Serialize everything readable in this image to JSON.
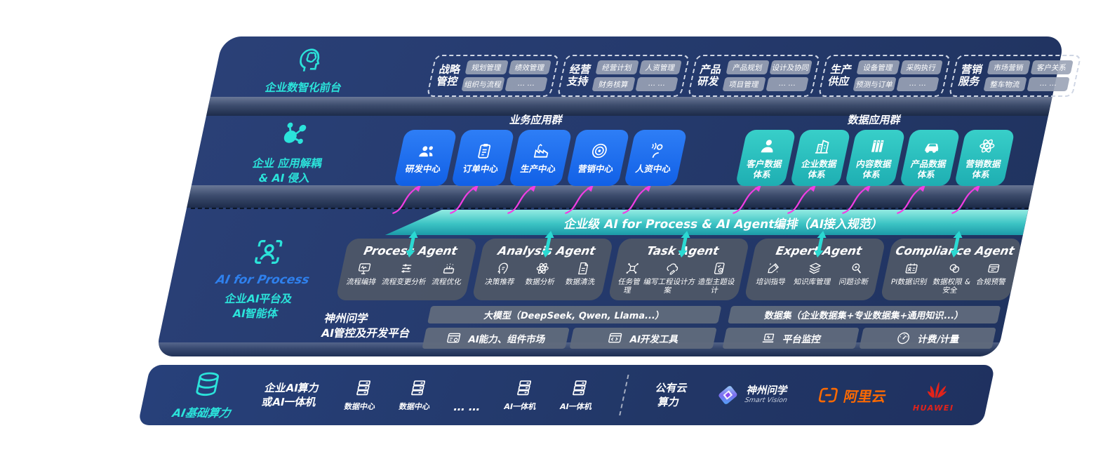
{
  "colors": {
    "navy": "#24396B",
    "teal_accent": "#2BE3DA",
    "blue_box": "#1D6FEE",
    "teal_box": "#2BC2C0",
    "band_teal": "#3CC3C4",
    "magenta": "#F13EE3",
    "agent_gray": "#4E5767",
    "chip_gray": "#9AA3B6",
    "aliyun_orange": "#FF6A00",
    "huawei_red": "#E2231A"
  },
  "front_office": {
    "label": "企业数智化前台",
    "groups": [
      {
        "name": "战略\n管控",
        "items": [
          "规划管理",
          "绩效管理",
          "组织与流程",
          "… …"
        ]
      },
      {
        "name": "经营\n支持",
        "items": [
          "经营计划",
          "人资管理",
          "财务核算",
          "… …"
        ]
      },
      {
        "name": "产品\n研发",
        "items": [
          "产品规划",
          "设计及协同",
          "项目管理",
          "… …"
        ]
      },
      {
        "name": "生产\n供应",
        "items": [
          "设备管理",
          "采购执行",
          "预测与订单",
          "… …"
        ]
      },
      {
        "name": "营销\n服务",
        "items": [
          "市场营销",
          "客户关系",
          "整车物流",
          "… …"
        ]
      }
    ]
  },
  "app_layer": {
    "label": "企业 应用解耦\n& AI 侵入",
    "business_title": "业务应用群",
    "data_title": "数据应用群",
    "business_apps": [
      {
        "label": "研发中心",
        "icon": "people-icon"
      },
      {
        "label": "订单中心",
        "icon": "clipboard-icon"
      },
      {
        "label": "生产中心",
        "icon": "factory-icon"
      },
      {
        "label": "营销中心",
        "icon": "target-icon"
      },
      {
        "label": "人资中心",
        "icon": "person-wave-icon"
      }
    ],
    "data_apps": [
      {
        "label": "客户数据\n体系",
        "icon": "person-icon"
      },
      {
        "label": "企业数据\n体系",
        "icon": "building-icon"
      },
      {
        "label": "内容数据\n体系",
        "icon": "books-icon"
      },
      {
        "label": "产品数据\n体系",
        "icon": "car-icon"
      },
      {
        "label": "营销数据\n体系",
        "icon": "atom-icon"
      }
    ]
  },
  "orchestration_band": {
    "label": "企业级 AI for Process & AI Agent编排（AI接入规范）"
  },
  "agent_layer": {
    "side_label": {
      "title": "AI for Process",
      "subtitle": "企业AI平台及\nAI智能体"
    },
    "agents": [
      {
        "title": "Process Agent",
        "items": [
          {
            "label": "流程编排",
            "icon": "monitor-icon"
          },
          {
            "label": "流程变更分析",
            "icon": "sliders-icon"
          },
          {
            "label": "流程优化",
            "icon": "machine-icon"
          }
        ]
      },
      {
        "title": "Analysis Agent",
        "items": [
          {
            "label": "决策推荐",
            "icon": "head-idea-icon"
          },
          {
            "label": "数据分析",
            "icon": "atom-icon"
          },
          {
            "label": "数据清洗",
            "icon": "document-icon"
          }
        ]
      },
      {
        "title": "Task Agent",
        "items": [
          {
            "label": "任务管理",
            "icon": "node-grid-icon"
          },
          {
            "label": "编写工程设计方案",
            "icon": "cloud-edit-icon"
          },
          {
            "label": "造型主题设计",
            "icon": "tablet-check-icon"
          }
        ]
      },
      {
        "title": "Expert Agent",
        "items": [
          {
            "label": "培训指导",
            "icon": "pencil-spark-icon"
          },
          {
            "label": "知识库管理",
            "icon": "layers-icon"
          },
          {
            "label": "问题诊断",
            "icon": "diagnose-icon"
          }
        ]
      },
      {
        "title": "Compliance Agent",
        "items": [
          {
            "label": "PI数据识别",
            "icon": "id-card-icon"
          },
          {
            "label": "数据权限 &\n安全",
            "icon": "link-icon"
          },
          {
            "label": "合规预警",
            "icon": "mail-icon"
          }
        ]
      }
    ]
  },
  "platform_layer": {
    "label": "神州问学\nAI管控及开发平台",
    "left": {
      "bar": "大模型（DeepSeek, Qwen, Llama...）",
      "cells": [
        {
          "label": "AI能力、组件市场",
          "icon": "window-gear-icon"
        },
        {
          "label": "AI开发工具",
          "icon": "window-code-icon"
        }
      ]
    },
    "right": {
      "bar": "数据集（企业数据集+专业数据集+通用知识...）",
      "cells": [
        {
          "label": "平台监控",
          "icon": "laptop-icon"
        },
        {
          "label": "计费/计量",
          "icon": "gauge-icon"
        }
      ]
    }
  },
  "infra_layer": {
    "label": "AI基础算力",
    "compute_label": "企业AI算力\n或AI一体机",
    "nodes": [
      {
        "label": "数据中心",
        "icon": "server-icon"
      },
      {
        "label": "数据中心",
        "icon": "server-icon"
      },
      {
        "label": "… …",
        "icon": "none"
      },
      {
        "label": "AI一体机",
        "icon": "server-icon"
      },
      {
        "label": "AI一体机",
        "icon": "server-icon"
      }
    ],
    "public_cloud": "公有云\n算力",
    "logos": {
      "smart_vision": {
        "text": "神州问学",
        "sub": "Smart Vision"
      },
      "aliyun": {
        "text": "阿里云"
      },
      "huawei": {
        "text": "HUAWEI"
      }
    }
  }
}
